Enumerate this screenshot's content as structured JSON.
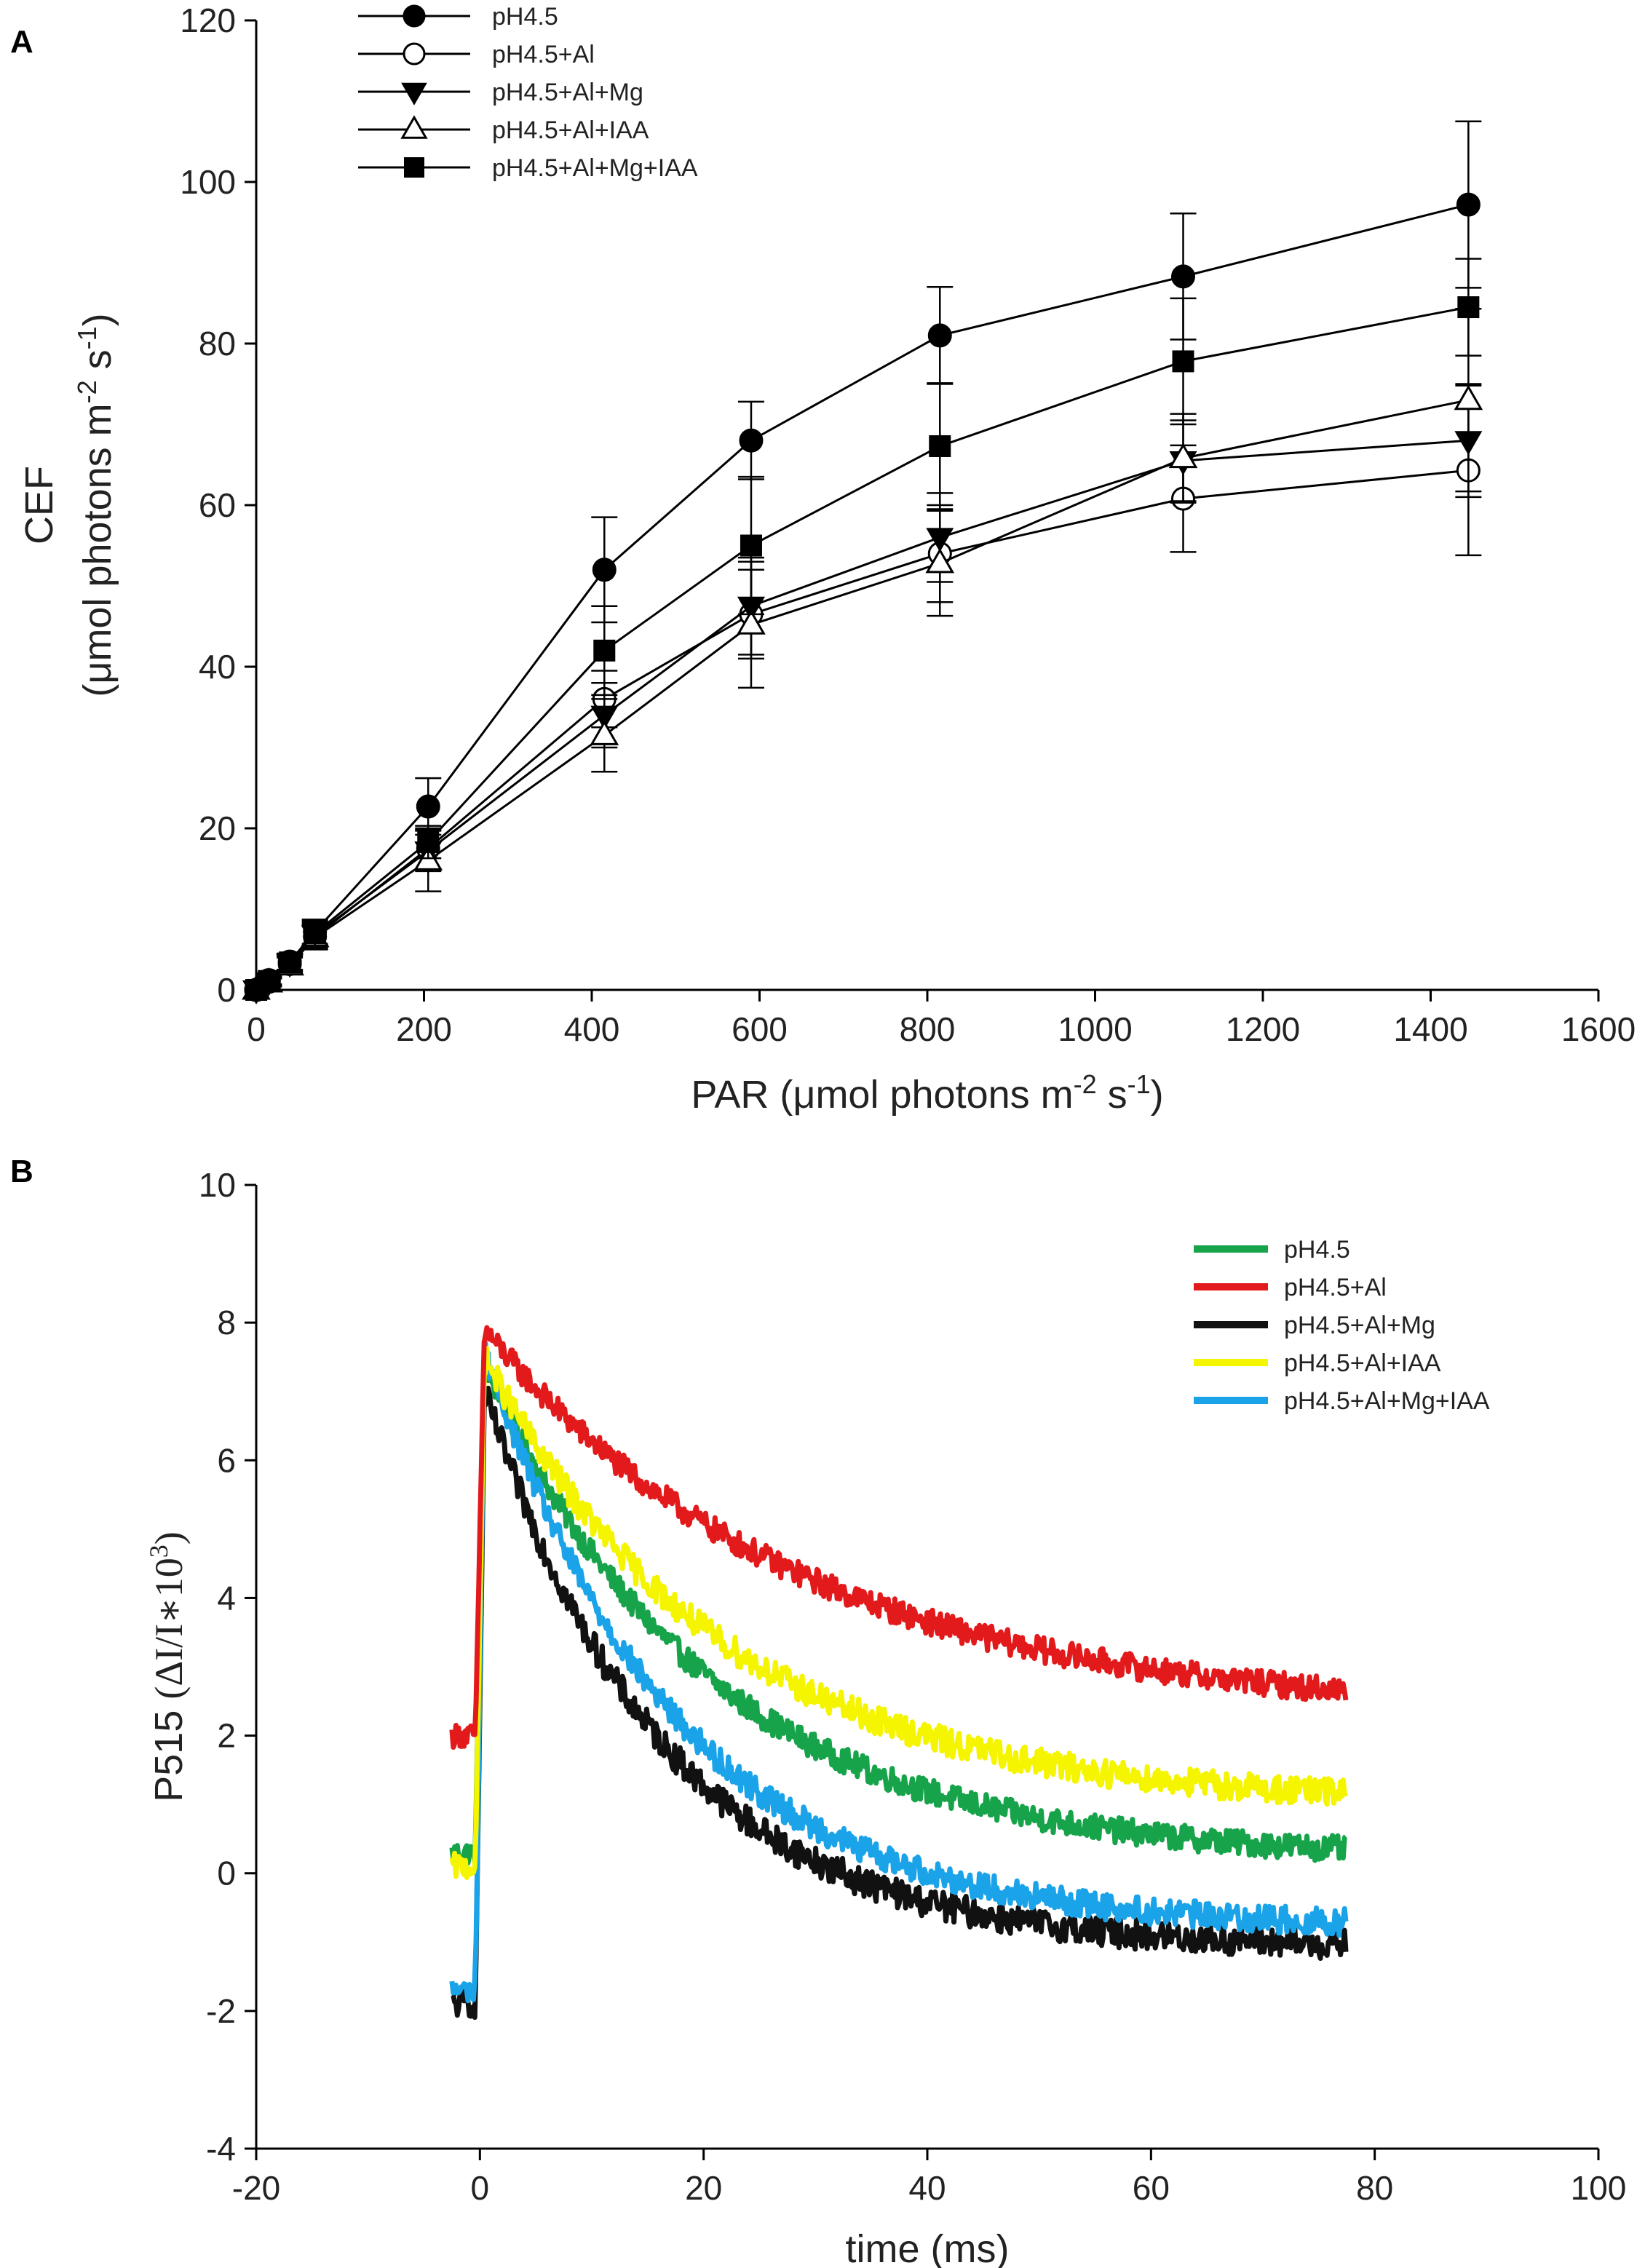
{
  "chart_data": [
    {
      "panel_label": "A",
      "type": "line",
      "xlabel": "PAR (μmol photons m-2 s-1)",
      "xlabel_parts": {
        "prefix": "PAR (μmol photons m",
        "sup1": "-2",
        "mid": " s",
        "sup2": "-1",
        "suffix": ")"
      },
      "ylabel_line1": "CEF",
      "ylabel_line2_parts": {
        "prefix": "(μmol photons m",
        "sup1": "-2",
        "mid": " s",
        "sup2": "-1",
        "suffix": ")"
      },
      "xlim": [
        0,
        1600
      ],
      "ylim": [
        0,
        120
      ],
      "xticks": [
        0,
        200,
        400,
        600,
        800,
        1000,
        1200,
        1400,
        1600
      ],
      "yticks": [
        0,
        20,
        40,
        60,
        80,
        100,
        120
      ],
      "legend_position": "top-left",
      "x": [
        0,
        15,
        40,
        70,
        205,
        415,
        590,
        815,
        1105,
        1445
      ],
      "series": [
        {
          "name": "pH4.5",
          "marker": "filled-circle",
          "values": [
            0,
            1.2,
            3.5,
            7.2,
            22.7,
            52,
            68,
            81,
            88.3,
            97.2
          ],
          "errors": [
            0,
            0.5,
            1,
            1.5,
            3.5,
            6.5,
            4.8,
            6,
            7.8,
            10.3
          ]
        },
        {
          "name": "pH4.5+Al",
          "marker": "open-circle",
          "values": [
            0,
            1,
            3.2,
            6.6,
            17.5,
            36,
            46.5,
            54,
            60.8,
            64.3
          ],
          "errors": [
            0,
            0.5,
            1,
            1.5,
            2.5,
            3.5,
            5.5,
            6,
            6.6,
            10.5
          ]
        },
        {
          "name": "pH4.5+Al+Mg",
          "marker": "filled-triangle-down",
          "values": [
            0,
            1,
            3.3,
            6.8,
            17.2,
            34,
            47.5,
            56,
            65.5,
            68
          ],
          "errors": [
            0,
            0.5,
            1,
            1.5,
            2.5,
            4,
            6,
            5.5,
            5,
            7
          ]
        },
        {
          "name": "pH4.5+Al+IAA",
          "marker": "open-triangle-up",
          "values": [
            0,
            0.9,
            3,
            6.5,
            16,
            31.5,
            45.2,
            52.8,
            65.8,
            73
          ],
          "errors": [
            0,
            0.5,
            1,
            1.5,
            3.8,
            4.5,
            7.8,
            6.5,
            5.5,
            11.3
          ]
        },
        {
          "name": "pH4.5+Al+Mg+IAA",
          "marker": "filled-square",
          "values": [
            0,
            1.1,
            3.4,
            7,
            18.3,
            42,
            55,
            67.3,
            77.8,
            84.5
          ],
          "errors": [
            0,
            0.5,
            1,
            1.5,
            2,
            5.5,
            8.5,
            7.8,
            7.8,
            6
          ]
        }
      ]
    },
    {
      "panel_label": "B",
      "type": "line",
      "xlabel": "time (ms)",
      "ylabel_prefix": "P515 ",
      "ylabel_math": "(ΔI/I∗10",
      "ylabel_sup": "3",
      "ylabel_close": ")",
      "xlim": [
        -20,
        100
      ],
      "ylim": [
        -4,
        10
      ],
      "xticks": [
        -20,
        0,
        20,
        40,
        60,
        80,
        100
      ],
      "yticks": [
        -4,
        -2,
        0,
        2,
        4,
        6,
        8,
        10
      ],
      "legend_position": "top-right",
      "time_range": [
        -2.5,
        77.5
      ],
      "peak_time": 0.4,
      "series": [
        {
          "name": "pH4.5",
          "color": "#16a34a",
          "pre": 0.3,
          "peak": 7.4,
          "final": 0.2,
          "tau": 20,
          "noise": 0.17
        },
        {
          "name": "pH4.5+Al",
          "color": "#e31a1c",
          "pre": 2.0,
          "peak": 7.9,
          "final": 2.3,
          "tau": 28,
          "noise": 0.17
        },
        {
          "name": "pH4.5+Al+Mg",
          "color": "#111111",
          "pre": -1.9,
          "peak": 7.0,
          "final": -1.1,
          "tau": 16,
          "noise": 0.2
        },
        {
          "name": "pH4.5+Al+IAA",
          "color": "#f5f500",
          "pre": 0.1,
          "peak": 7.5,
          "final": 1.0,
          "tau": 21,
          "noise": 0.19
        },
        {
          "name": "pH4.5+Al+Mg+IAA",
          "color": "#1aa3e8",
          "pre": -1.7,
          "peak": 7.6,
          "final": -0.8,
          "tau": 17,
          "noise": 0.18
        }
      ]
    }
  ]
}
